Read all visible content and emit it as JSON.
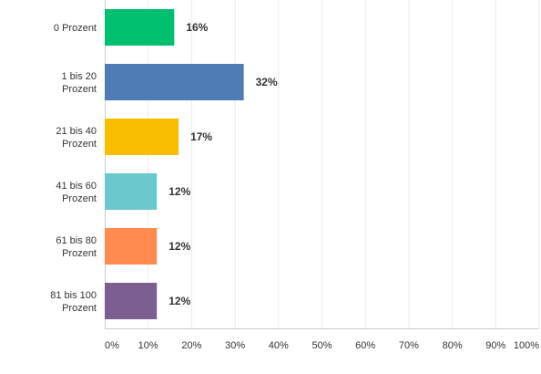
{
  "chart_data": {
    "type": "bar",
    "orientation": "horizontal",
    "categories": [
      [
        "0 Prozent"
      ],
      [
        "1 bis 20",
        "Prozent"
      ],
      [
        "21 bis 40",
        "Prozent"
      ],
      [
        "41 bis 60",
        "Prozent"
      ],
      [
        "61 bis 80",
        "Prozent"
      ],
      [
        "81 bis 100",
        "Prozent"
      ]
    ],
    "values": [
      16,
      32,
      17,
      12,
      12,
      12
    ],
    "value_labels": [
      "16%",
      "32%",
      "17%",
      "12%",
      "12%",
      "12%"
    ],
    "colors": [
      "#00bf6f",
      "#507cb6",
      "#f9be00",
      "#6bc8cd",
      "#ff8b4f",
      "#7d5e90"
    ],
    "xlim": [
      0,
      100
    ],
    "xticks": [
      0,
      10,
      20,
      30,
      40,
      50,
      60,
      70,
      80,
      90,
      100
    ],
    "xtick_labels": [
      "0%",
      "10%",
      "20%",
      "30%",
      "40%",
      "50%",
      "60%",
      "70%",
      "80%",
      "90%",
      "100%"
    ],
    "grid": true,
    "title": "",
    "xlabel": "",
    "ylabel": ""
  }
}
